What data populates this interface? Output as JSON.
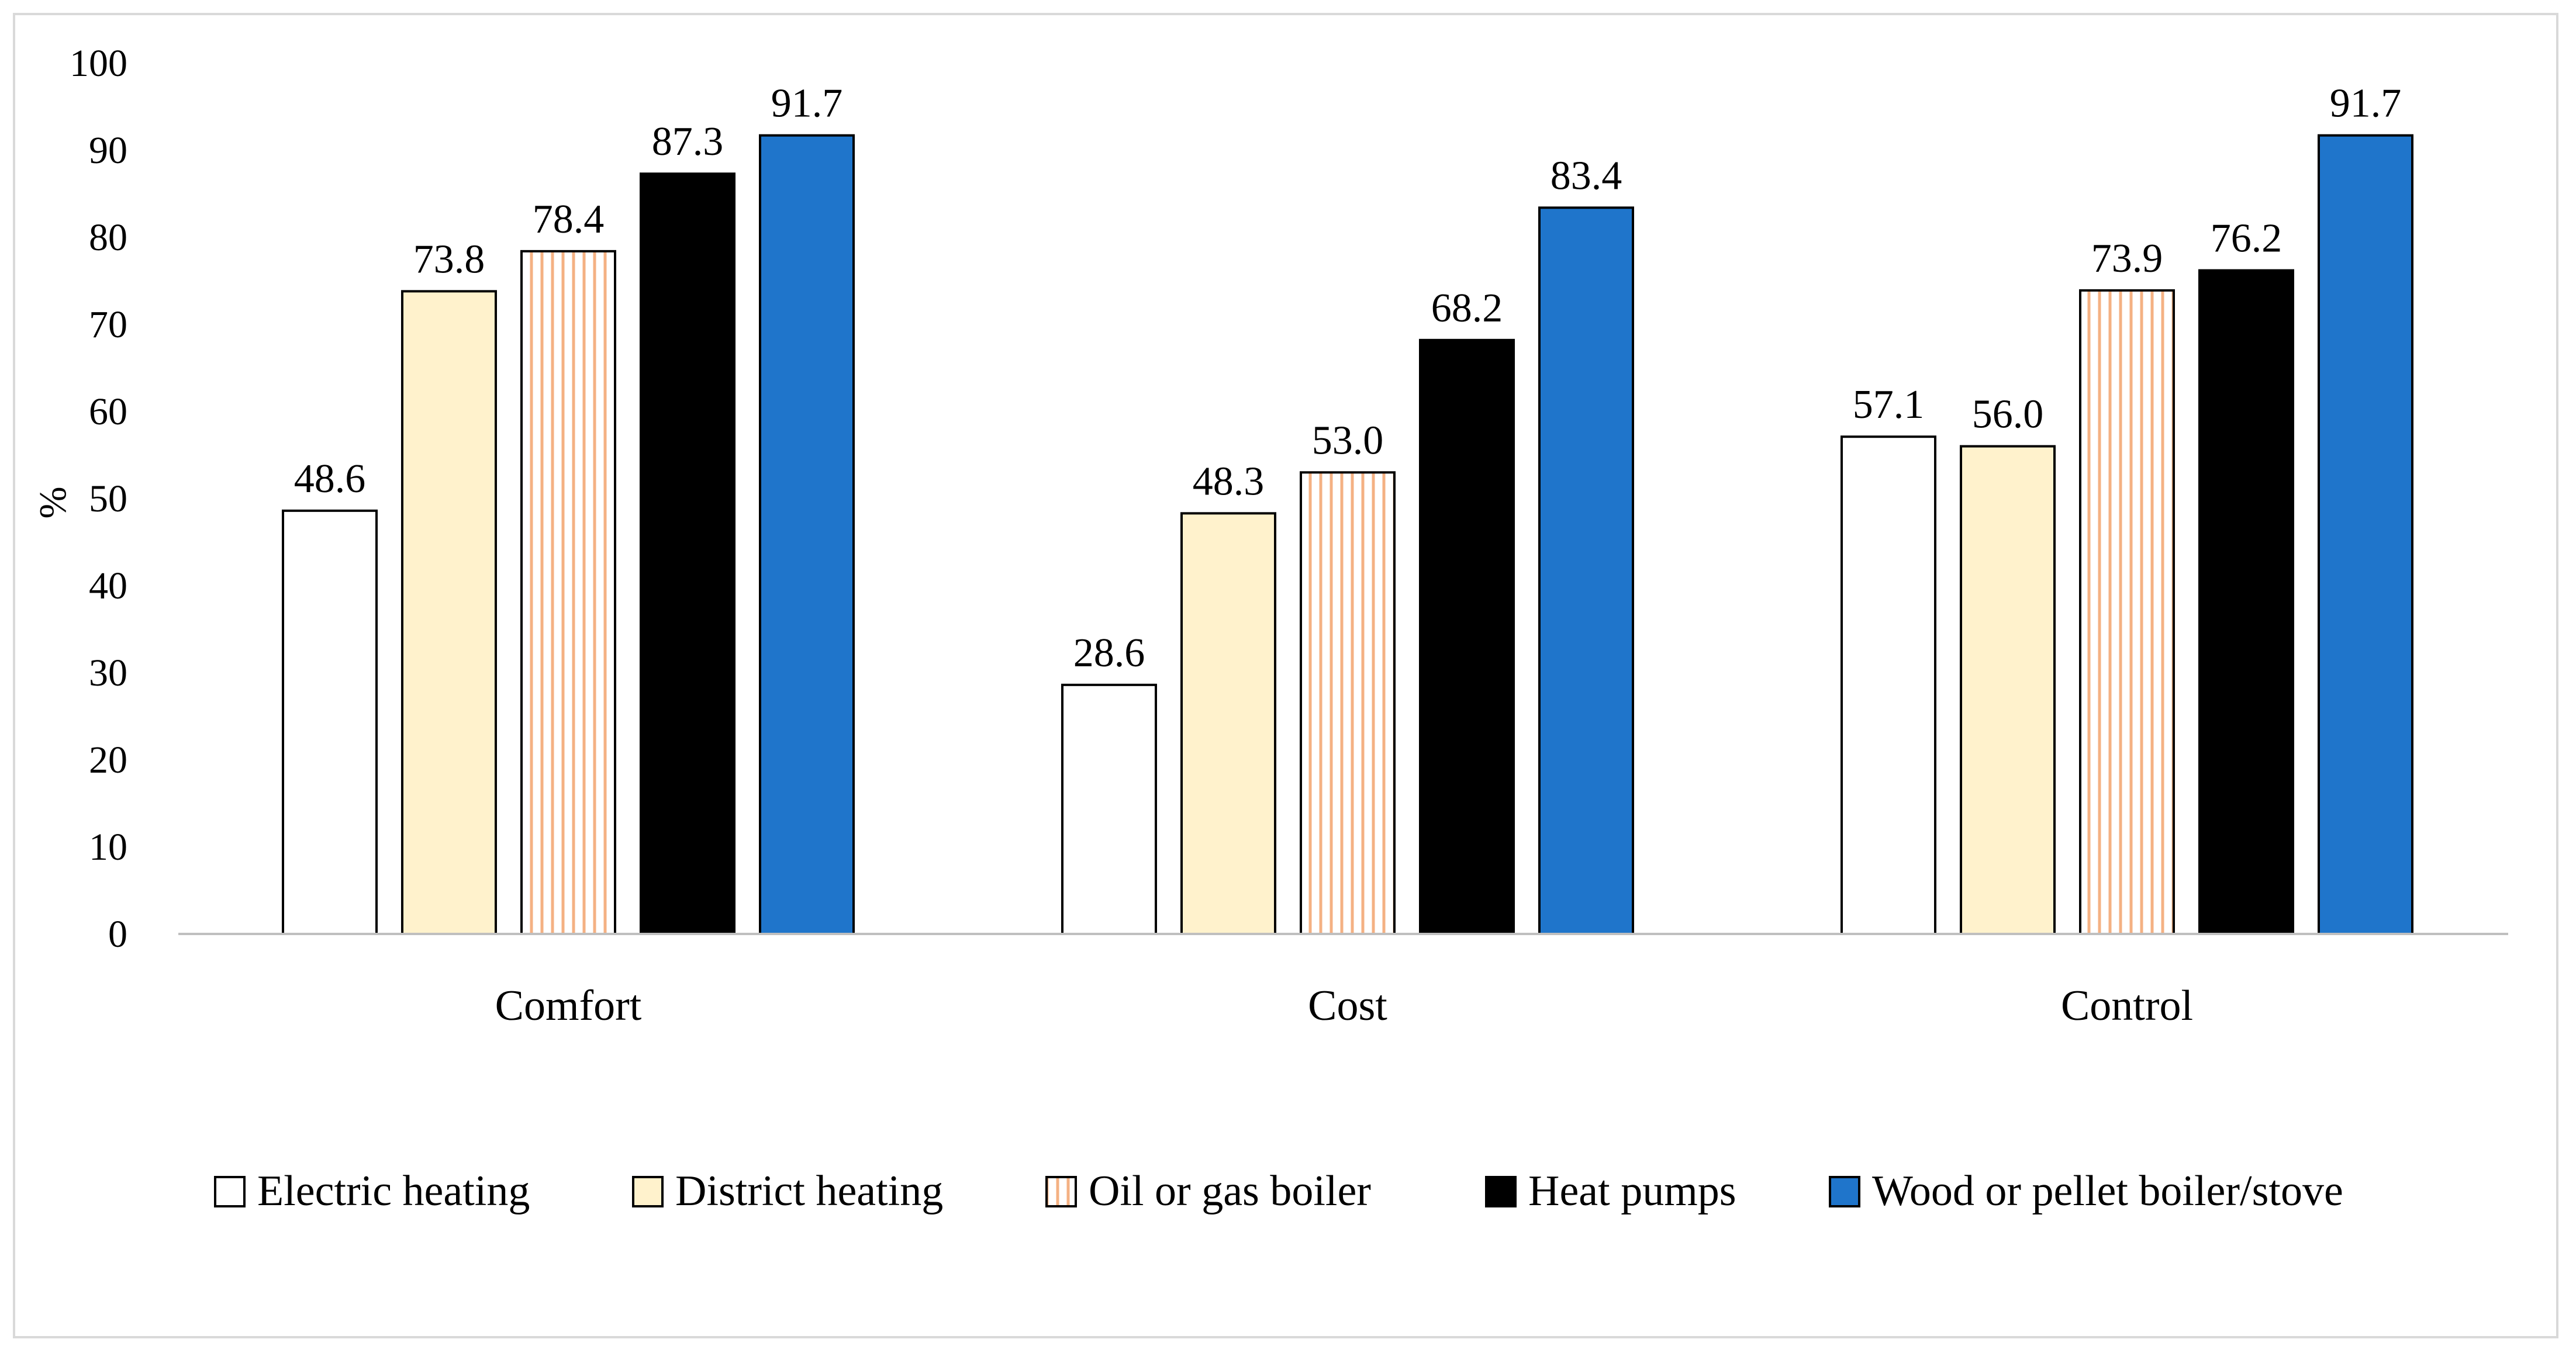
{
  "chart_data": {
    "type": "bar",
    "title": "",
    "xlabel": "",
    "ylabel": "%",
    "ylim": [
      0,
      100
    ],
    "yticks": [
      0,
      10,
      20,
      30,
      40,
      50,
      60,
      70,
      80,
      90,
      100
    ],
    "grid": false,
    "legend_position": "bottom",
    "categories": [
      "Comfort",
      "Cost",
      "Control"
    ],
    "series": [
      {
        "name": "Electric heating",
        "values": [
          48.6,
          28.6,
          57.1
        ],
        "labels": [
          "48.6",
          "28.6",
          "57.1"
        ],
        "fill": "#ffffff",
        "pattern": "none"
      },
      {
        "name": "District heating",
        "values": [
          73.8,
          48.3,
          56.0
        ],
        "labels": [
          "73.8",
          "48.3",
          "56.0"
        ],
        "fill": "#fff2cc",
        "pattern": "none"
      },
      {
        "name": "Oil or gas boiler",
        "values": [
          78.4,
          53.0,
          73.9
        ],
        "labels": [
          "78.4",
          "53.0",
          "73.9"
        ],
        "fill": "#ffffff",
        "pattern": "vertical-lines",
        "pattern_color": "#f4b183"
      },
      {
        "name": "Heat pumps",
        "values": [
          87.3,
          68.2,
          76.2
        ],
        "labels": [
          "87.3",
          "68.2",
          "76.2"
        ],
        "fill": "#000000",
        "pattern": "none"
      },
      {
        "name": "Wood or pellet boiler/stove",
        "values": [
          91.7,
          83.4,
          91.7
        ],
        "labels": [
          "91.7",
          "83.4",
          "91.7"
        ],
        "fill": "#1f75cb",
        "pattern": "none"
      }
    ]
  },
  "colors": {
    "axis": "#bfbfbf",
    "frame": "#d9d9d9",
    "bar_outline": "#000000"
  }
}
